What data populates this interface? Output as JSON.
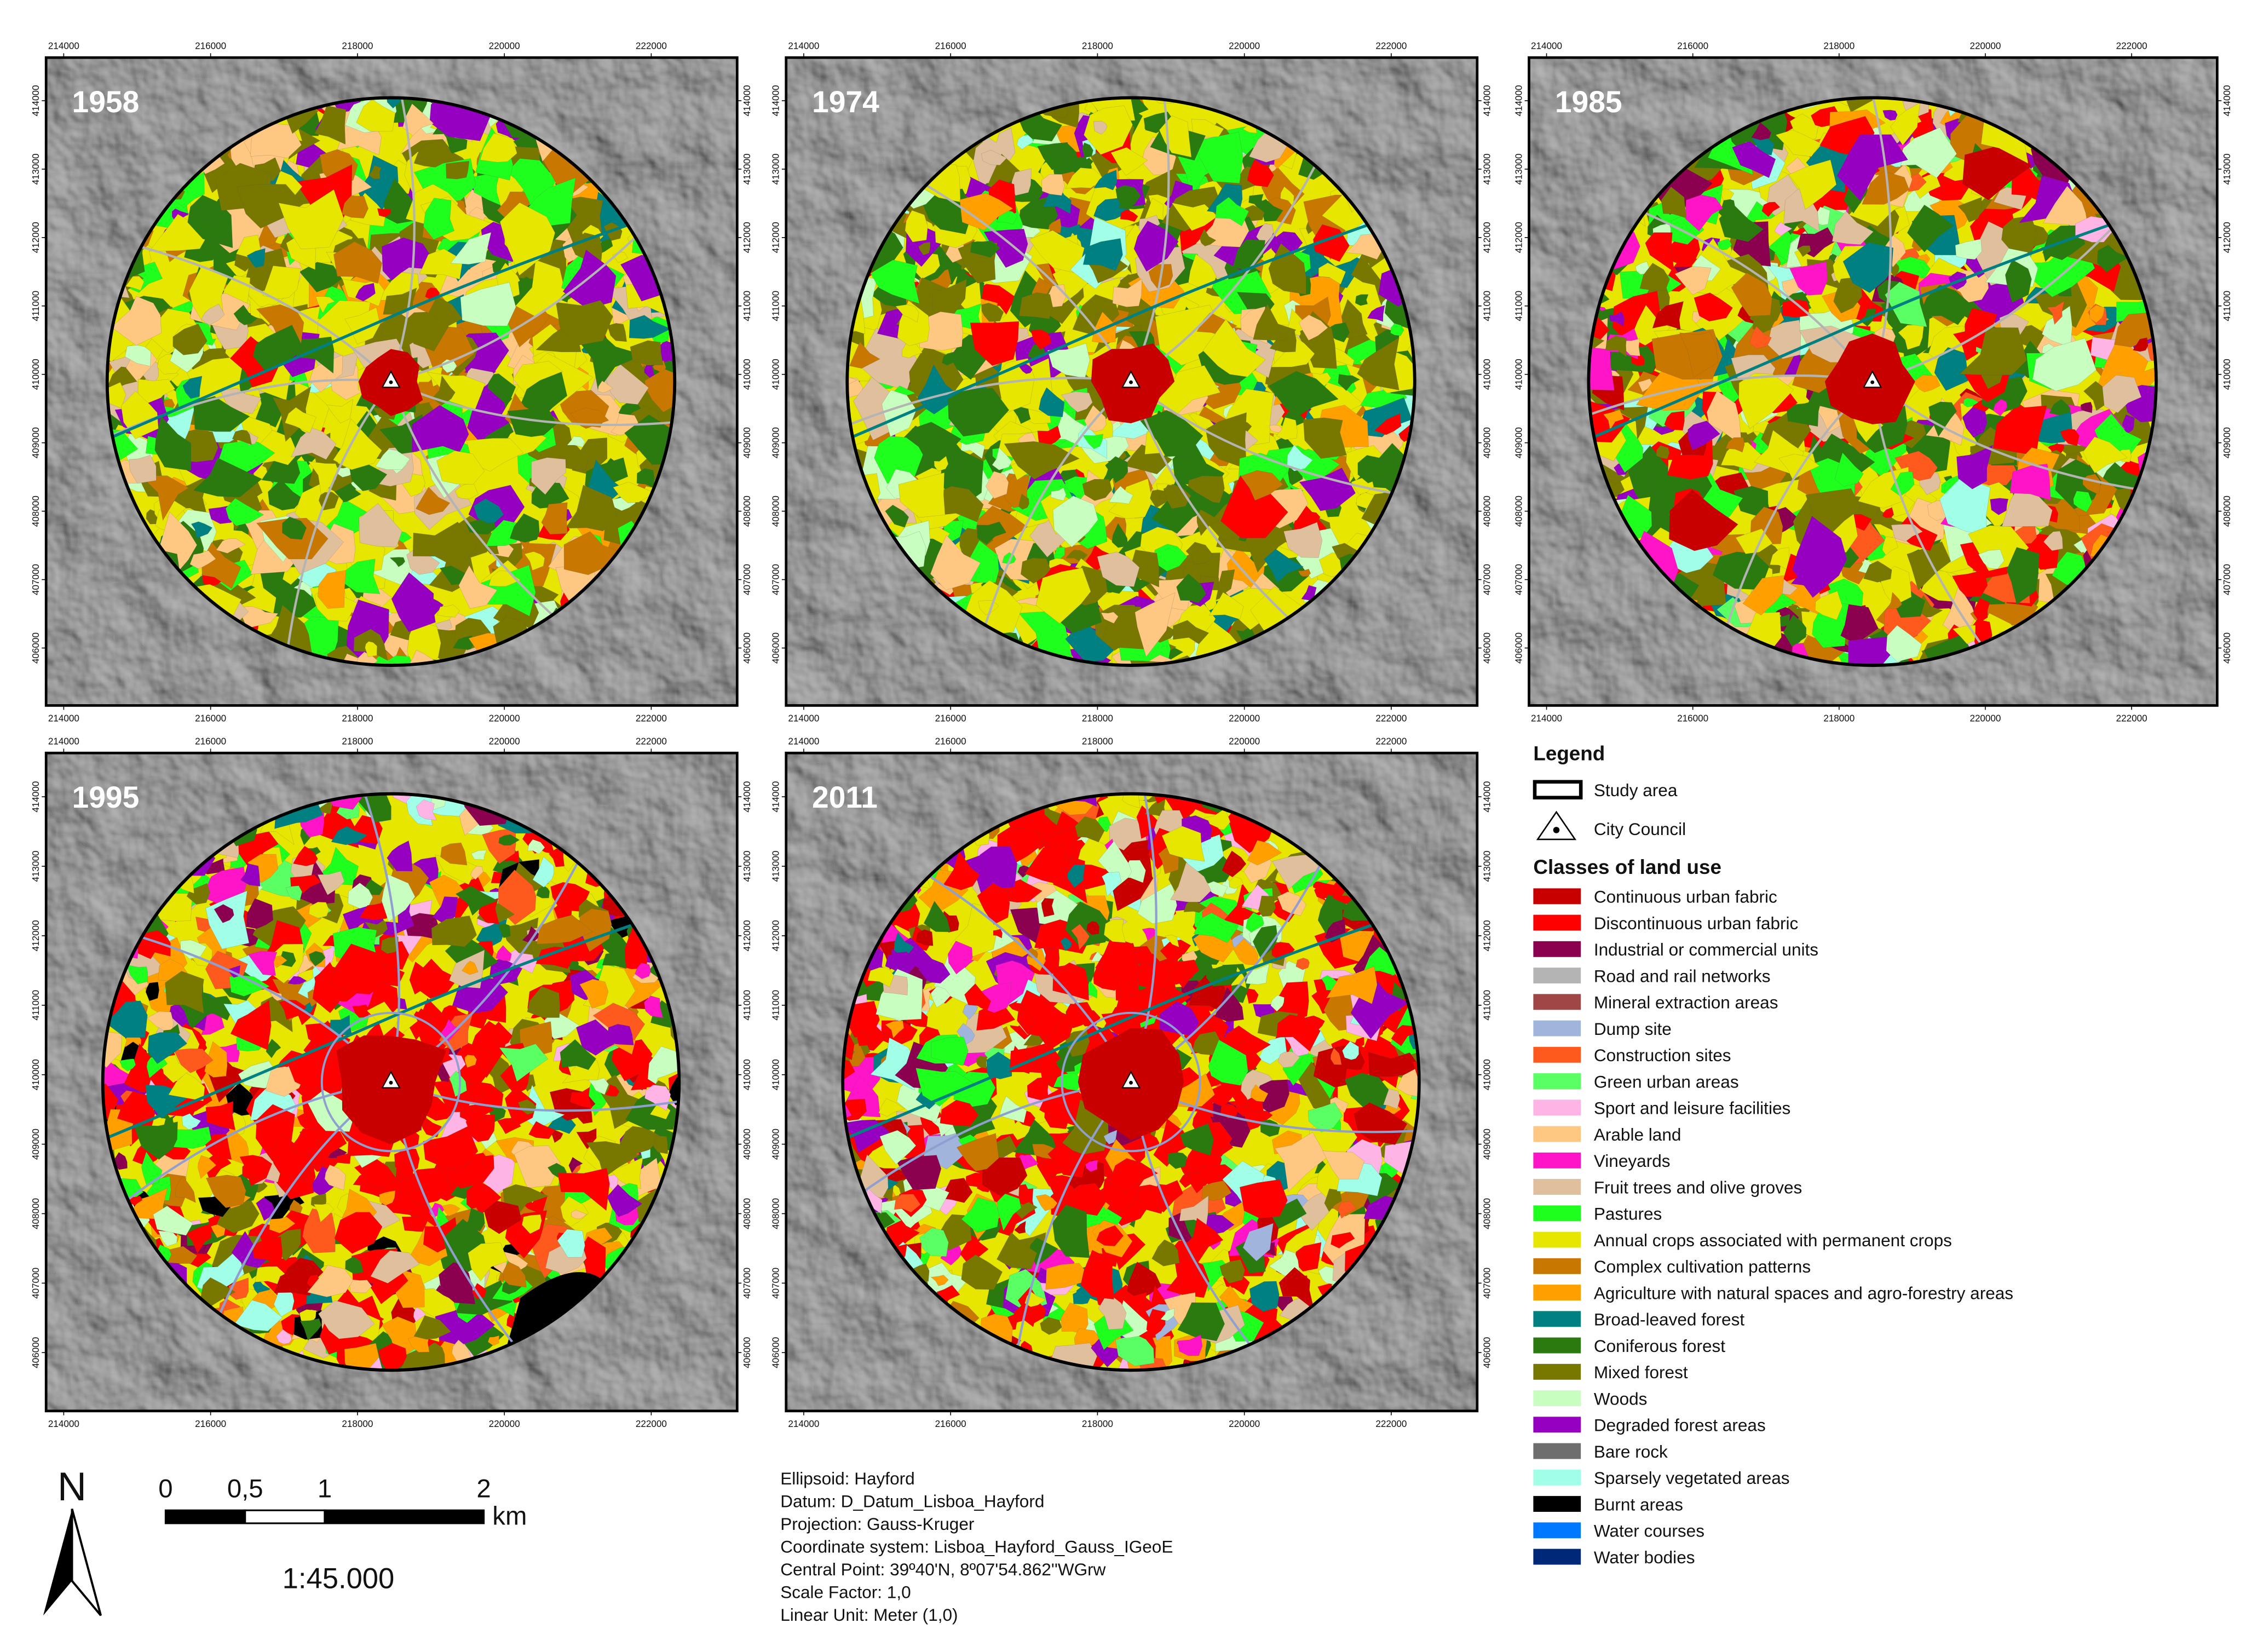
{
  "panels": [
    {
      "year": "1958"
    },
    {
      "year": "1974"
    },
    {
      "year": "1985"
    },
    {
      "year": "1995"
    },
    {
      "year": "2011"
    }
  ],
  "xlim": [
    213760,
    223170
  ],
  "ylim": [
    405160,
    414630
  ],
  "xticks": [
    214000,
    216000,
    218000,
    220000,
    222000
  ],
  "yticks": [
    406000,
    407000,
    408000,
    409000,
    410000,
    411000,
    412000,
    413000,
    414000
  ],
  "legend": {
    "title": "Legend",
    "study_area": "Study area",
    "city_council": "City Council",
    "classes_title": "Classes of land use",
    "classes": [
      {
        "name": "Continuous urban fabric",
        "color": "#c80000"
      },
      {
        "name": "Discontinuous urban fabric",
        "color": "#ff0000"
      },
      {
        "name": "Industrial or commercial units",
        "color": "#8c0050"
      },
      {
        "name": "Road and rail networks",
        "color": "#b4b4b4"
      },
      {
        "name": "Mineral extraction areas",
        "color": "#a04646"
      },
      {
        "name": "Dump site",
        "color": "#a0b4dc"
      },
      {
        "name": "Construction sites",
        "color": "#ff5a1e"
      },
      {
        "name": "Green urban areas",
        "color": "#5aff64"
      },
      {
        "name": "Sport and leisure facilities",
        "color": "#ffb4e6"
      },
      {
        "name": "Arable land",
        "color": "#ffc882"
      },
      {
        "name": "Vineyards",
        "color": "#ff14c8"
      },
      {
        "name": "Fruit trees and olive groves",
        "color": "#e0c09c"
      },
      {
        "name": "Pastures",
        "color": "#1eff1e"
      },
      {
        "name": "Annual crops associated with permanent crops",
        "color": "#e6e600"
      },
      {
        "name": "Complex cultivation patterns",
        "color": "#c87800"
      },
      {
        "name": "Agriculture with natural spaces and agro-forestry areas",
        "color": "#ffa000"
      },
      {
        "name": "Broad-leaved forest",
        "color": "#008080"
      },
      {
        "name": "Coniferous forest",
        "color": "#2a7a10"
      },
      {
        "name": "Mixed forest",
        "color": "#787800"
      },
      {
        "name": "Woods",
        "color": "#c8ffc0"
      },
      {
        "name": "Degraded forest areas",
        "color": "#9600c0"
      },
      {
        "name": "Bare rock",
        "color": "#6e6e6e"
      },
      {
        "name": "Sparsely vegetated areas",
        "color": "#a0ffe6"
      },
      {
        "name": "Burnt areas",
        "color": "#000000"
      },
      {
        "name": "Water courses",
        "color": "#0078ff"
      },
      {
        "name": "Water bodies",
        "color": "#002878"
      }
    ]
  },
  "north": "N",
  "scale_bar": {
    "ticks": [
      0,
      {
        "value": 0.5,
        "label": "0,5"
      },
      1,
      2
    ],
    "unit": "km",
    "ratio": "1:45.000"
  },
  "notes": [
    "Ellipsoid: Hayford",
    "Datum: D_Datum_Lisboa_Hayford",
    "Projection: Gauss-Kruger",
    "Coordinate system: Lisboa_Hayford_Gauss_IGeoE",
    "Central Point: 39º40'N, 8º07'54.862''WGrw",
    "Scale Factor: 1,0",
    "Linear Unit: Meter (1,0)"
  ]
}
